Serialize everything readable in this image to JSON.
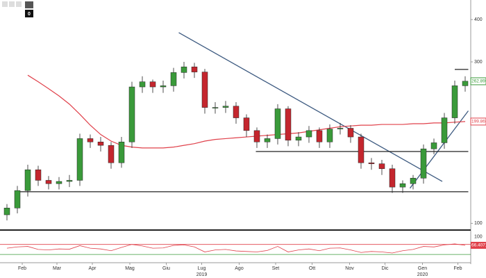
{
  "chart_data": {
    "type": "candlestick",
    "toolbar_badge": "0",
    "open": [
      106,
      111,
      125,
      144,
      134,
      131,
      133,
      134,
      178,
      174,
      170,
      151,
      174,
      253,
      262,
      253,
      255,
      279,
      290,
      280,
      220,
      220,
      222,
      205,
      188,
      174,
      178,
      218,
      176,
      180,
      188,
      174,
      190,
      191,
      180,
      151,
      150,
      145,
      128,
      131,
      136,
      166,
      173,
      205,
      255
    ],
    "high": [
      114,
      129,
      149,
      148,
      138,
      137,
      139,
      184,
      183,
      180,
      174,
      180,
      262,
      272,
      266,
      264,
      288,
      300,
      298,
      286,
      228,
      230,
      228,
      210,
      192,
      183,
      225,
      222,
      186,
      194,
      192,
      196,
      198,
      195,
      184,
      156,
      154,
      149,
      134,
      139,
      171,
      178,
      212,
      264,
      272
    ],
    "low": [
      102,
      107,
      120,
      129,
      126,
      126,
      128,
      129,
      167,
      163,
      145,
      146,
      167,
      243,
      243,
      243,
      245,
      268,
      269,
      211,
      211,
      212,
      197,
      180,
      167,
      167,
      171,
      169,
      169,
      173,
      167,
      167,
      183,
      173,
      145,
      144,
      139,
      123,
      123,
      126,
      131,
      160,
      166,
      197,
      245
    ],
    "close": [
      111,
      125,
      144,
      134,
      131,
      133,
      134,
      178,
      174,
      170,
      151,
      174,
      253,
      262,
      253,
      255,
      279,
      290,
      280,
      220,
      220,
      222,
      205,
      188,
      174,
      178,
      218,
      176,
      180,
      188,
      174,
      190,
      191,
      180,
      151,
      150,
      145,
      128,
      131,
      136,
      166,
      173,
      205,
      255,
      263
    ],
    "up_color": "#3a9a3a",
    "down_color": "#c4262e",
    "ma": {
      "color": "#e0404a",
      "values": [
        null,
        null,
        274,
        262,
        250,
        238,
        225,
        210,
        195,
        183,
        175,
        170,
        168,
        167,
        167,
        167,
        168,
        170,
        172,
        175,
        177,
        178,
        179,
        180,
        181,
        182,
        183,
        184,
        185,
        187,
        189,
        191,
        193,
        194,
        195,
        195,
        196,
        196,
        196,
        197,
        197,
        198,
        198,
        199,
        199.87
      ]
    },
    "ylim": [
      96,
      457
    ],
    "log_scale": true,
    "yticks": [
      400,
      300,
      100
    ],
    "last_labels": [
      {
        "value": 262.895,
        "label": "262.8950",
        "color": "#3a9a3a"
      },
      {
        "value": 199.8658,
        "label": "199.8658",
        "color": "#e0404a"
      }
    ],
    "lines": [
      {
        "x": [
          16.5,
          41.8
        ],
        "y": [
          366,
          133
        ],
        "color": "#3d5a80"
      },
      {
        "x": [
          38.7,
          44.3
        ],
        "y": [
          127,
          215
        ],
        "color": "#3d5a80"
      },
      {
        "x": [
          0.8,
          44.3
        ],
        "y": [
          124,
          124
        ],
        "color": "#222222"
      },
      {
        "x": [
          23.9,
          44.3
        ],
        "y": [
          163,
          163
        ],
        "color": "#222222"
      },
      {
        "x": [
          43,
          44.3
        ],
        "y": [
          285,
          285
        ],
        "color": "#222222"
      }
    ],
    "xticks": [
      {
        "value": 1.47,
        "label": "Feb"
      },
      {
        "value": 4.8,
        "label": "Mar"
      },
      {
        "value": 8.2,
        "label": "Apr"
      },
      {
        "value": 11.8,
        "label": "Mag"
      },
      {
        "value": 15.3,
        "label": "Giu"
      },
      {
        "value": 18.7,
        "label": "Lug"
      },
      {
        "value": 22.3,
        "label": "Ago"
      },
      {
        "value": 25.8,
        "label": "Set"
      },
      {
        "value": 29.3,
        "label": "Ott"
      },
      {
        "value": 32.9,
        "label": "Nov"
      },
      {
        "value": 36.3,
        "label": "Dic"
      },
      {
        "value": 39.9,
        "label": "Gen"
      },
      {
        "value": 43.3,
        "label": "Feb"
      }
    ],
    "year_labels": [
      {
        "value": 18.7,
        "label": "2019"
      },
      {
        "value": 39.9,
        "label": "2020"
      }
    ],
    "rsi": {
      "color": "#e0404a",
      "ylim": [
        0,
        105
      ],
      "yticks": [
        100
      ],
      "levels": [
        {
          "value": 70,
          "color": "#e0404a"
        },
        {
          "value": 30,
          "color": "#3a9a3a"
        }
      ],
      "values": [
        55,
        60,
        62,
        50,
        48,
        52,
        51,
        65,
        55,
        52,
        45,
        58,
        70,
        64,
        55,
        56,
        66,
        68,
        60,
        40,
        48,
        50,
        44,
        42,
        40,
        46,
        62,
        40,
        48,
        52,
        45,
        55,
        56,
        48,
        38,
        42,
        40,
        36,
        45,
        50,
        62,
        60,
        68,
        72,
        66.4071
      ],
      "last_label": {
        "value": 66.4071,
        "label": "66.4071"
      }
    }
  }
}
